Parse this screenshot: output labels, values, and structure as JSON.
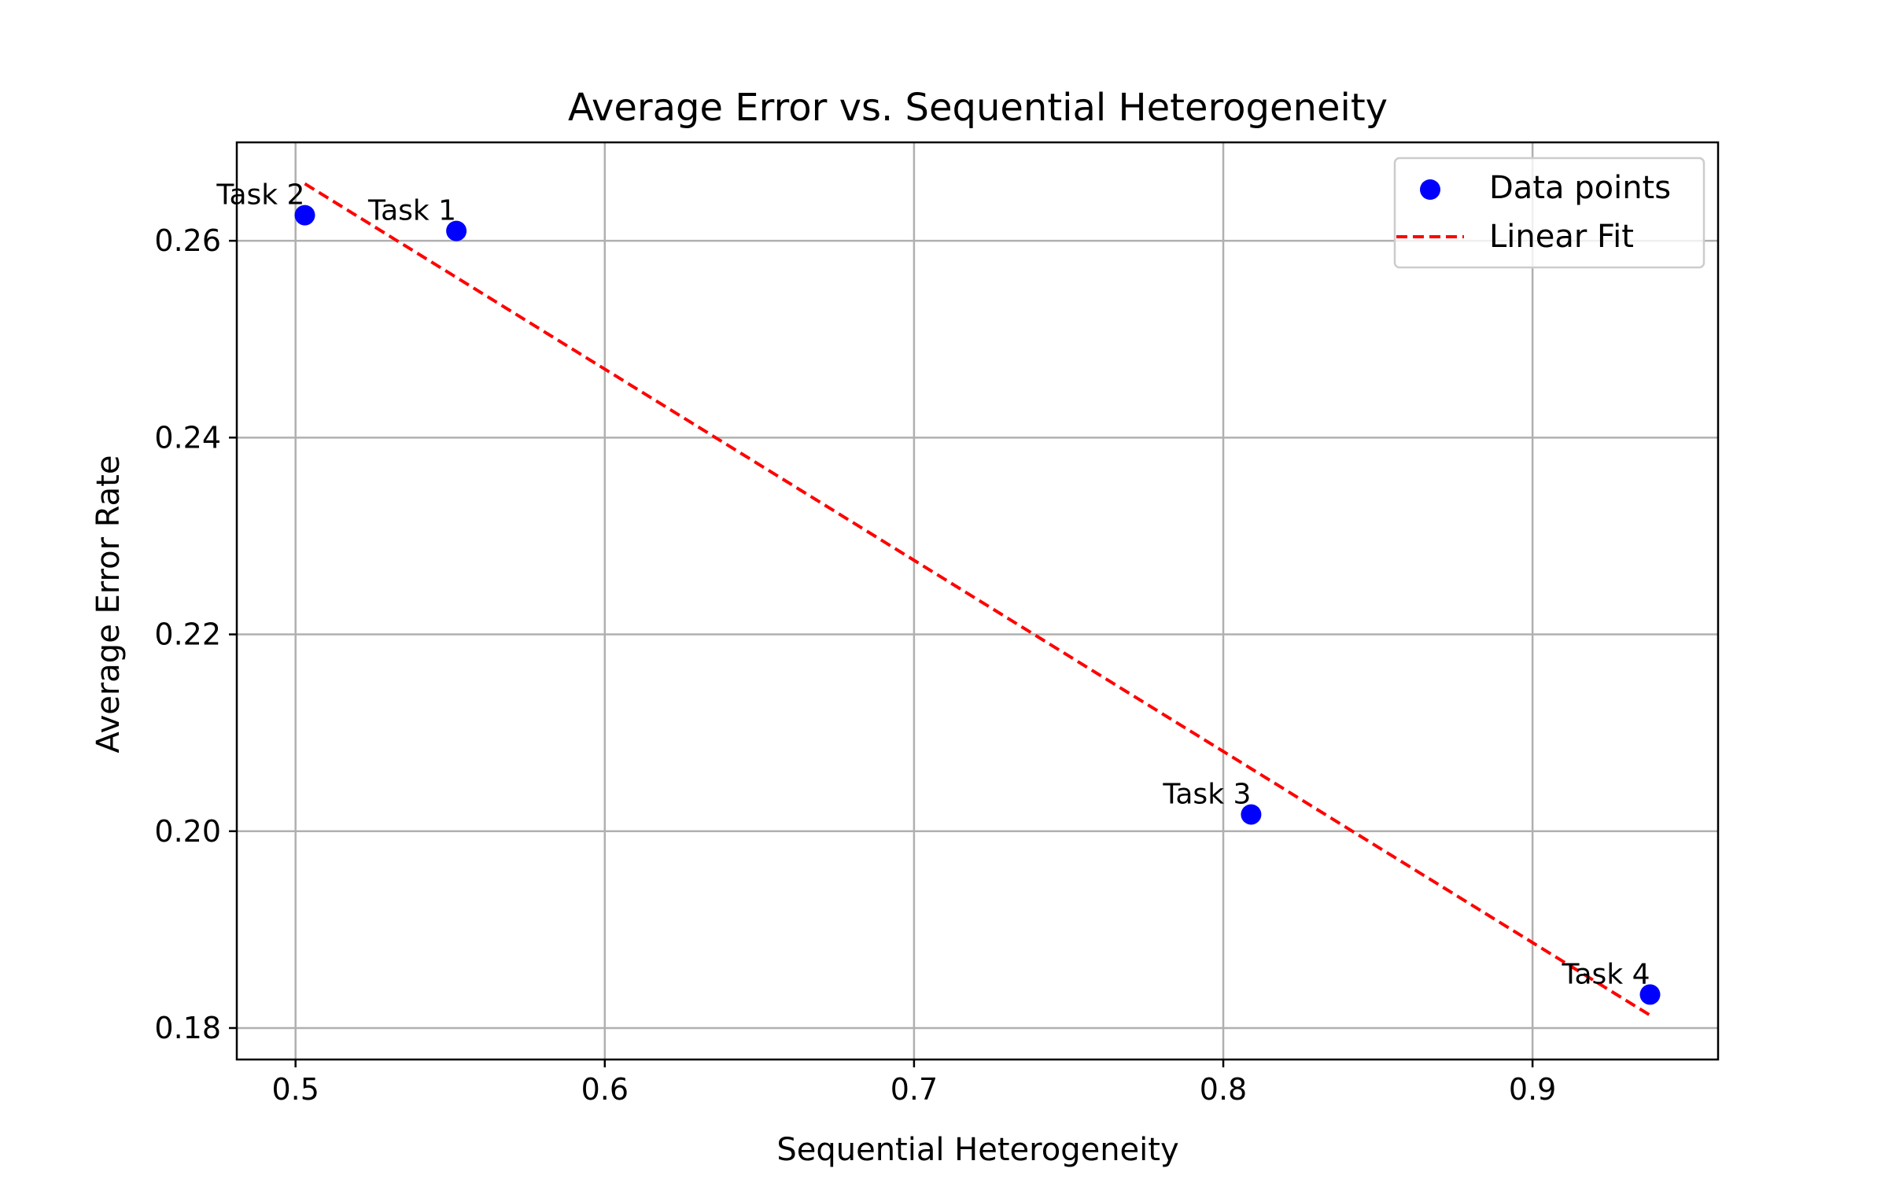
{
  "chart_data": {
    "type": "scatter",
    "title": "Average Error vs. Sequential Heterogeneity",
    "xlabel": "Sequential Heterogeneity",
    "ylabel": "Average Error Rate",
    "xlim": [
      0.481,
      0.96
    ],
    "ylim": [
      0.1768,
      0.27
    ],
    "xticks": [
      0.5,
      0.6,
      0.7,
      0.8,
      0.9
    ],
    "xtick_labels": [
      "0.5",
      "0.6",
      "0.7",
      "0.8",
      "0.9"
    ],
    "yticks": [
      0.18,
      0.2,
      0.22,
      0.24,
      0.26
    ],
    "ytick_labels": [
      "0.18",
      "0.20",
      "0.22",
      "0.24",
      "0.26"
    ],
    "grid": true,
    "legend_position": "top-right",
    "series": [
      {
        "name": "Data points",
        "type": "scatter",
        "color": "#0000ff",
        "x": [
          0.552,
          0.503,
          0.809,
          0.938
        ],
        "y": [
          0.261,
          0.2626,
          0.2017,
          0.1834
        ],
        "labels": [
          "Task 1",
          "Task 2",
          "Task 3",
          "Task 4"
        ]
      },
      {
        "name": "Linear Fit",
        "type": "line",
        "style": "dashed",
        "color": "#ff0000",
        "x": [
          0.503,
          0.938
        ],
        "y": [
          0.2658,
          0.1813
        ]
      }
    ]
  }
}
